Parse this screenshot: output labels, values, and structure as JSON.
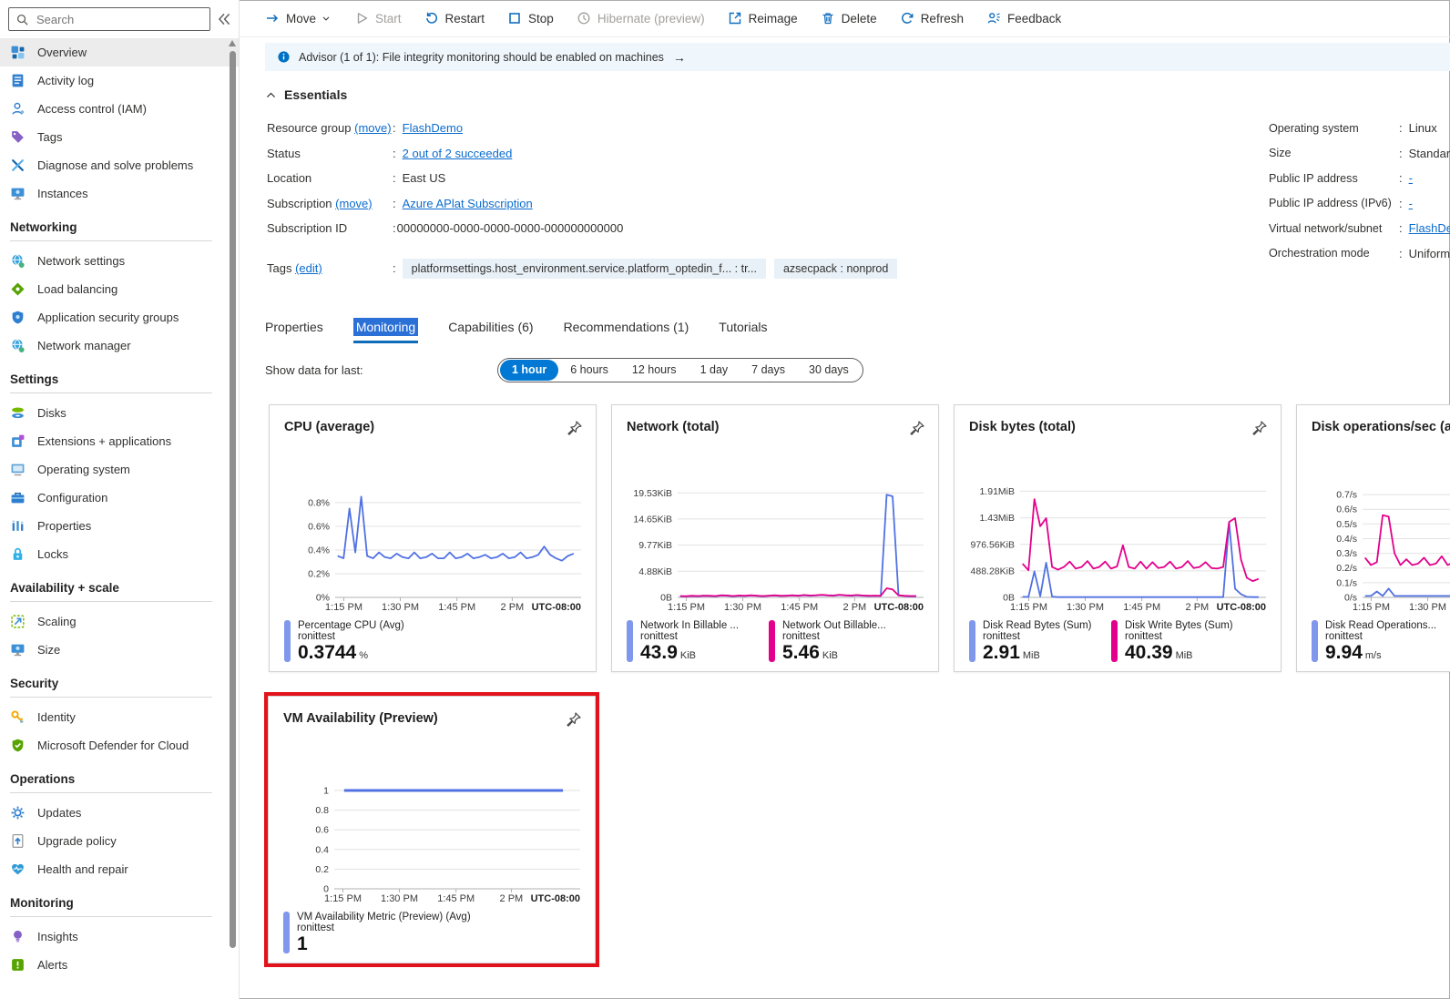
{
  "colors": {
    "accent": "#0078d4",
    "link": "#0b6cce",
    "chart_blue": "#5071e3",
    "chart_pink": "#e3008c",
    "legend_blue": "#7f97ec",
    "highlight_red": "#e3121b",
    "banner_bg": "#eff6fc"
  },
  "sidebar": {
    "search_placeholder": "Search",
    "sections": [
      {
        "header": null,
        "items": [
          {
            "label": "Overview",
            "icon": "overview",
            "selected": true
          },
          {
            "label": "Activity log",
            "icon": "activity-log"
          },
          {
            "label": "Access control (IAM)",
            "icon": "access-control"
          },
          {
            "label": "Tags",
            "icon": "tags"
          },
          {
            "label": "Diagnose and solve problems",
            "icon": "diagnose"
          },
          {
            "label": "Instances",
            "icon": "instances"
          }
        ]
      },
      {
        "header": "Networking",
        "items": [
          {
            "label": "Network settings",
            "icon": "globe"
          },
          {
            "label": "Load balancing",
            "icon": "load-balancing"
          },
          {
            "label": "Application security groups",
            "icon": "shield-app"
          },
          {
            "label": "Network manager",
            "icon": "globe"
          }
        ]
      },
      {
        "header": "Settings",
        "items": [
          {
            "label": "Disks",
            "icon": "disks"
          },
          {
            "label": "Extensions + applications",
            "icon": "extensions"
          },
          {
            "label": "Operating system",
            "icon": "os"
          },
          {
            "label": "Configuration",
            "icon": "configuration"
          },
          {
            "label": "Properties",
            "icon": "properties"
          },
          {
            "label": "Locks",
            "icon": "locks"
          }
        ]
      },
      {
        "header": "Availability + scale",
        "items": [
          {
            "label": "Scaling",
            "icon": "scaling"
          },
          {
            "label": "Size",
            "icon": "instances"
          }
        ]
      },
      {
        "header": "Security",
        "items": [
          {
            "label": "Identity",
            "icon": "identity"
          },
          {
            "label": "Microsoft Defender for Cloud",
            "icon": "defender"
          }
        ]
      },
      {
        "header": "Operations",
        "items": [
          {
            "label": "Updates",
            "icon": "updates"
          },
          {
            "label": "Upgrade policy",
            "icon": "upgrade-policy"
          },
          {
            "label": "Health and repair",
            "icon": "health-repair"
          }
        ]
      },
      {
        "header": "Monitoring",
        "items": [
          {
            "label": "Insights",
            "icon": "insights"
          },
          {
            "label": "Alerts",
            "icon": "alerts"
          }
        ]
      }
    ]
  },
  "toolbar": {
    "items": [
      {
        "label": "Move",
        "icon": "move",
        "chevron": true
      },
      {
        "label": "Start",
        "icon": "start",
        "disabled": true
      },
      {
        "label": "Restart",
        "icon": "restart"
      },
      {
        "label": "Stop",
        "icon": "stop"
      },
      {
        "label": "Hibernate (preview)",
        "icon": "hibernate",
        "disabled": true
      },
      {
        "label": "Reimage",
        "icon": "reimage"
      },
      {
        "label": "Delete",
        "icon": "delete"
      },
      {
        "label": "Refresh",
        "icon": "refresh"
      },
      {
        "label": "Feedback",
        "icon": "feedback"
      }
    ]
  },
  "banner": {
    "text": "Advisor (1 of 1): File integrity monitoring should be enabled on machines",
    "arrow": "→"
  },
  "essentials": {
    "title": "Essentials",
    "left": [
      {
        "label": "Resource group",
        "suffix": "(move)",
        "value": "FlashDemo",
        "link": true
      },
      {
        "label": "Status",
        "value": "2 out of 2 succeeded",
        "link": true
      },
      {
        "label": "Location",
        "value": "East US"
      },
      {
        "label": "Subscription",
        "suffix": "(move)",
        "value": "Azure APlat Subscription",
        "link": true
      },
      {
        "label": "Subscription ID",
        "value": "00000000-0000-0000-0000-000000000000",
        "tight": true
      }
    ],
    "right": [
      {
        "label": "Operating system",
        "value": "Linux"
      },
      {
        "label": "Size",
        "value": "Standard"
      },
      {
        "label": "Public IP address",
        "value": "-",
        "link": true
      },
      {
        "label": "Public IP address (IPv6)",
        "value": "-",
        "link": true
      },
      {
        "label": "Virtual network/subnet",
        "value": "FlashDemo",
        "link": true
      },
      {
        "label": "Orchestration mode",
        "value": "Uniform"
      }
    ],
    "tags_label": "Tags",
    "tags_suffix": "(edit)",
    "tags": [
      "platformsettings.host_environment.service.platform_optedin_f...  : tr...",
      "azsecpack : nonprod"
    ]
  },
  "tabs": {
    "items": [
      {
        "label": "Properties"
      },
      {
        "label": "Monitoring",
        "selected": true
      },
      {
        "label": "Capabilities (6)"
      },
      {
        "label": "Recommendations (1)"
      },
      {
        "label": "Tutorials"
      }
    ]
  },
  "time_range": {
    "label": "Show data for last:",
    "options": [
      "1 hour",
      "6 hours",
      "12 hours",
      "1 day",
      "7 days",
      "30 days"
    ],
    "selected": 0
  },
  "chart_data": [
    {
      "type": "line",
      "name": "cpu",
      "title": "CPU (average)",
      "ylim": [
        0,
        0.93
      ],
      "y_ticks": [
        {
          "v": 0.8,
          "label": "0.8%"
        },
        {
          "v": 0.6,
          "label": "0.6%"
        },
        {
          "v": 0.4,
          "label": "0.4%"
        },
        {
          "v": 0.2,
          "label": "0.2%"
        },
        {
          "v": 0,
          "label": "0%"
        }
      ],
      "x_ticks": [
        {
          "f": 0.035,
          "label": "1:15 PM"
        },
        {
          "f": 0.265,
          "label": "1:30 PM"
        },
        {
          "f": 0.495,
          "label": "1:45 PM"
        },
        {
          "f": 0.72,
          "label": "2 PM"
        }
      ],
      "utc_label": "UTC-08:00",
      "series": [
        {
          "color": "#5071e3",
          "start": 0.01,
          "end": 0.97,
          "values": [
            0.35,
            0.33,
            0.75,
            0.38,
            0.85,
            0.35,
            0.33,
            0.38,
            0.34,
            0.33,
            0.37,
            0.34,
            0.33,
            0.38,
            0.33,
            0.34,
            0.37,
            0.33,
            0.33,
            0.38,
            0.33,
            0.34,
            0.37,
            0.33,
            0.34,
            0.36,
            0.33,
            0.34,
            0.37,
            0.33,
            0.34,
            0.38,
            0.33,
            0.34,
            0.36,
            0.43,
            0.36,
            0.33,
            0.31,
            0.35,
            0.37
          ],
          "legend": {
            "bar": "#7f97ec",
            "title": "Percentage CPU (Avg)",
            "subtitle": "ronittest",
            "value": "0.3744",
            "unit": "%"
          }
        }
      ]
    },
    {
      "type": "line",
      "name": "network",
      "title": "Network (total)",
      "ylim": [
        0,
        20.6
      ],
      "y_ticks": [
        {
          "v": 19.53,
          "label": "19.53KiB"
        },
        {
          "v": 14.65,
          "label": "14.65KiB"
        },
        {
          "v": 9.77,
          "label": "9.77KiB"
        },
        {
          "v": 4.88,
          "label": "4.88KiB"
        },
        {
          "v": 0,
          "label": "0B"
        }
      ],
      "x_ticks": [
        {
          "f": 0.035,
          "label": "1:15 PM"
        },
        {
          "f": 0.265,
          "label": "1:30 PM"
        },
        {
          "f": 0.495,
          "label": "1:45 PM"
        },
        {
          "f": 0.72,
          "label": "2 PM"
        }
      ],
      "utc_label": "UTC-08:00",
      "series": [
        {
          "color": "#5071e3",
          "start": 0.01,
          "end": 0.97,
          "values": [
            0.2,
            0.2,
            0.25,
            0.2,
            0.3,
            0.25,
            0.2,
            0.35,
            0.3,
            0.2,
            0.3,
            0.25,
            0.35,
            0.3,
            0.2,
            0.3,
            0.35,
            0.25,
            0.3,
            0.35,
            0.3,
            0.4,
            0.3,
            0.35,
            0.45,
            0.35,
            0.3,
            0.45,
            0.35,
            0.3,
            0.4,
            0.3,
            0.25,
            0.3,
            0.25,
            19.2,
            18.9,
            0.4,
            0.25,
            0.2,
            0.2
          ],
          "legend": {
            "bar": "#7f97ec",
            "title": "Network In Billable ...",
            "subtitle": "ronittest",
            "value": "43.9",
            "unit": "KiB"
          }
        },
        {
          "color": "#e3008c",
          "start": 0.01,
          "end": 0.97,
          "values": [
            0.25,
            0.2,
            0.3,
            0.25,
            0.3,
            0.3,
            0.25,
            0.4,
            0.35,
            0.25,
            0.35,
            0.3,
            0.4,
            0.3,
            0.25,
            0.3,
            0.4,
            0.3,
            0.3,
            0.4,
            0.3,
            0.45,
            0.35,
            0.4,
            0.5,
            0.4,
            0.35,
            0.5,
            0.4,
            0.35,
            0.45,
            0.35,
            0.3,
            0.3,
            0.3,
            1.7,
            1.5,
            0.4,
            0.3,
            0.25,
            0.25
          ],
          "legend": {
            "bar": "#e3008c",
            "title": "Network Out Billable...",
            "subtitle": "ronittest",
            "value": "5.46",
            "unit": "KiB"
          }
        }
      ]
    },
    {
      "type": "line",
      "name": "disk-bytes",
      "title": "Disk bytes (total)",
      "ylim": [
        0,
        2030
      ],
      "y_ticks": [
        {
          "v": 1955.84,
          "label": "1.91MiB"
        },
        {
          "v": 1464.32,
          "label": "1.43MiB"
        },
        {
          "v": 976.56,
          "label": "976.56KiB"
        },
        {
          "v": 488.28,
          "label": "488.28KiB"
        },
        {
          "v": 0,
          "label": "0B"
        }
      ],
      "x_ticks": [
        {
          "f": 0.035,
          "label": "1:15 PM"
        },
        {
          "f": 0.265,
          "label": "1:30 PM"
        },
        {
          "f": 0.495,
          "label": "1:45 PM"
        },
        {
          "f": 0.72,
          "label": "2 PM"
        }
      ],
      "utc_label": "UTC-08:00",
      "series": [
        {
          "color": "#5071e3",
          "start": 0.01,
          "end": 0.97,
          "values": [
            10,
            10,
            480,
            20,
            640,
            15,
            5,
            5,
            5,
            5,
            5,
            5,
            5,
            5,
            5,
            5,
            5,
            5,
            5,
            5,
            5,
            5,
            5,
            5,
            5,
            5,
            5,
            5,
            5,
            5,
            5,
            5,
            5,
            5,
            5,
            1380,
            160,
            60,
            10,
            5,
            5
          ],
          "legend": {
            "bar": "#7f97ec",
            "title": "Disk Read Bytes (Sum)",
            "subtitle": "ronittest",
            "value": "2.91",
            "unit": "MiB"
          }
        },
        {
          "color": "#e3008c",
          "start": 0.01,
          "end": 0.97,
          "values": [
            620,
            500,
            1810,
            1310,
            1460,
            560,
            510,
            560,
            660,
            530,
            560,
            670,
            530,
            560,
            660,
            530,
            570,
            960,
            560,
            530,
            660,
            530,
            650,
            540,
            560,
            660,
            530,
            560,
            670,
            540,
            560,
            650,
            540,
            530,
            560,
            1390,
            1460,
            700,
            360,
            300,
            340
          ],
          "legend": {
            "bar": "#e3008c",
            "title": "Disk Write Bytes (Sum)",
            "subtitle": "ronittest",
            "value": "40.39",
            "unit": "MiB"
          }
        }
      ]
    },
    {
      "type": "line",
      "name": "disk-ops",
      "title": "Disk operations/sec (average)",
      "ylim": [
        0,
        0.75
      ],
      "y_ticks": [
        {
          "v": 0.7,
          "label": "0.7/s"
        },
        {
          "v": 0.6,
          "label": "0.6/s"
        },
        {
          "v": 0.5,
          "label": "0.5/s"
        },
        {
          "v": 0.4,
          "label": "0.4/s"
        },
        {
          "v": 0.3,
          "label": "0.3/s"
        },
        {
          "v": 0.2,
          "label": "0.2/s"
        },
        {
          "v": 0.1,
          "label": "0.1/s"
        },
        {
          "v": 0,
          "label": "0/s"
        }
      ],
      "x_ticks": [
        {
          "f": 0.035,
          "label": "1:15 PM"
        },
        {
          "f": 0.265,
          "label": "1:30 PM"
        },
        {
          "f": 0.495,
          "label": "1:45 PM"
        },
        {
          "f": 0.72,
          "label": "2 PM"
        }
      ],
      "utc_label": "UTC-08:00",
      "series": [
        {
          "color": "#5071e3",
          "start": 0.01,
          "end": 0.97,
          "values": [
            0.01,
            0.01,
            0.04,
            0.01,
            0.06,
            0.01,
            0.01,
            0.01,
            0.01,
            0.01,
            0.01,
            0.01,
            0.01,
            0.01,
            0.01,
            0.01,
            0.01,
            0.01,
            0.01,
            0.01,
            0.01,
            0.01,
            0.01,
            0.01,
            0.01,
            0.01,
            0.01,
            0.01,
            0.01,
            0.01,
            0.01,
            0.01,
            0.01,
            0.01,
            0.01,
            0.18,
            0.05,
            0.02,
            0.01,
            0.01,
            0.01
          ],
          "legend": {
            "bar": "#7f97ec",
            "title": "Disk Read Operations...",
            "subtitle": "ronittest",
            "value": "9.94",
            "unit": "m/s"
          }
        },
        {
          "color": "#e3008c",
          "start": 0.01,
          "end": 0.97,
          "values": [
            0.27,
            0.22,
            0.24,
            0.56,
            0.55,
            0.3,
            0.22,
            0.26,
            0.22,
            0.23,
            0.27,
            0.22,
            0.23,
            0.28,
            0.22,
            0.24,
            0.27,
            0.22,
            0.23,
            0.26,
            0.22,
            0.24,
            0.28,
            0.22,
            0.23,
            0.27,
            0.22,
            0.24,
            0.26,
            0.22,
            0.23,
            0.27,
            0.22,
            0.24,
            0.28,
            0.55,
            0.5,
            0.35,
            0.25,
            0.2,
            0.22
          ],
          "legend": {
            "bar": "#e3008c",
            "title": "",
            "subtitle": "",
            "value": "",
            "unit": ""
          }
        }
      ]
    },
    {
      "type": "line",
      "name": "vm-availability",
      "title": "VM Availability (Preview)",
      "highlight": true,
      "ylim": [
        0,
        1.12
      ],
      "y_ticks": [
        {
          "v": 1,
          "label": "1"
        },
        {
          "v": 0.8,
          "label": "0.8"
        },
        {
          "v": 0.6,
          "label": "0.6"
        },
        {
          "v": 0.4,
          "label": "0.4"
        },
        {
          "v": 0.2,
          "label": "0.2"
        },
        {
          "v": 0,
          "label": "0"
        }
      ],
      "x_ticks": [
        {
          "f": 0.035,
          "label": "1:15 PM"
        },
        {
          "f": 0.265,
          "label": "1:30 PM"
        },
        {
          "f": 0.495,
          "label": "1:45 PM"
        },
        {
          "f": 0.72,
          "label": "2 PM"
        }
      ],
      "utc_label": "UTC-08:00",
      "series": [
        {
          "color": "#5071e3",
          "width": 3,
          "start": 0.04,
          "end": 0.93,
          "values": [
            1,
            1,
            1,
            1,
            1,
            1,
            1,
            1,
            1,
            1,
            1,
            1,
            1,
            1,
            1,
            1,
            1,
            1,
            1,
            1,
            1,
            1,
            1,
            1,
            1,
            1,
            1,
            1,
            1,
            1,
            1,
            1,
            1,
            1,
            1,
            1,
            1,
            1,
            1,
            1,
            1
          ],
          "legend": {
            "bar": "#7f97ec",
            "title": "VM Availability Metric (Preview) (Avg)",
            "subtitle": "ronittest",
            "value": "1",
            "unit": ""
          }
        }
      ]
    }
  ]
}
